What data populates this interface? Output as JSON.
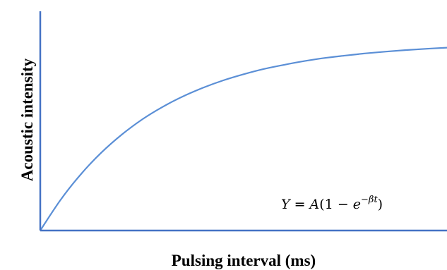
{
  "chart_data": {
    "type": "line",
    "title": "",
    "xlabel": "Pulsing interval (ms)",
    "ylabel": "Acoustic intensity",
    "xlim": [
      0,
      10
    ],
    "ylim": [
      0,
      1
    ],
    "grid": false,
    "legend": "none",
    "annotation": {
      "Y": "Y",
      "eq_a": " = ",
      "A": "A",
      "eq_b": "(1 − ",
      "e": "e",
      "exp": "−βt",
      "close": ")"
    },
    "series": [
      {
        "values_model": "Y = A(1 - e^(-beta*t))",
        "x": [
          0,
          0.5,
          1,
          1.5,
          2,
          2.5,
          3,
          3.5,
          4,
          4.5,
          5,
          5.5,
          6,
          6.5,
          7,
          7.5,
          8,
          8.5,
          9,
          9.5,
          10
        ],
        "y": [
          0,
          0.14,
          0.257,
          0.355,
          0.437,
          0.506,
          0.563,
          0.611,
          0.651,
          0.685,
          0.713,
          0.737,
          0.756,
          0.773,
          0.787,
          0.798,
          0.808,
          0.816,
          0.823,
          0.829,
          0.834
        ],
        "color": "#5b8fd6"
      }
    ],
    "axis_color": "#4472c4"
  }
}
